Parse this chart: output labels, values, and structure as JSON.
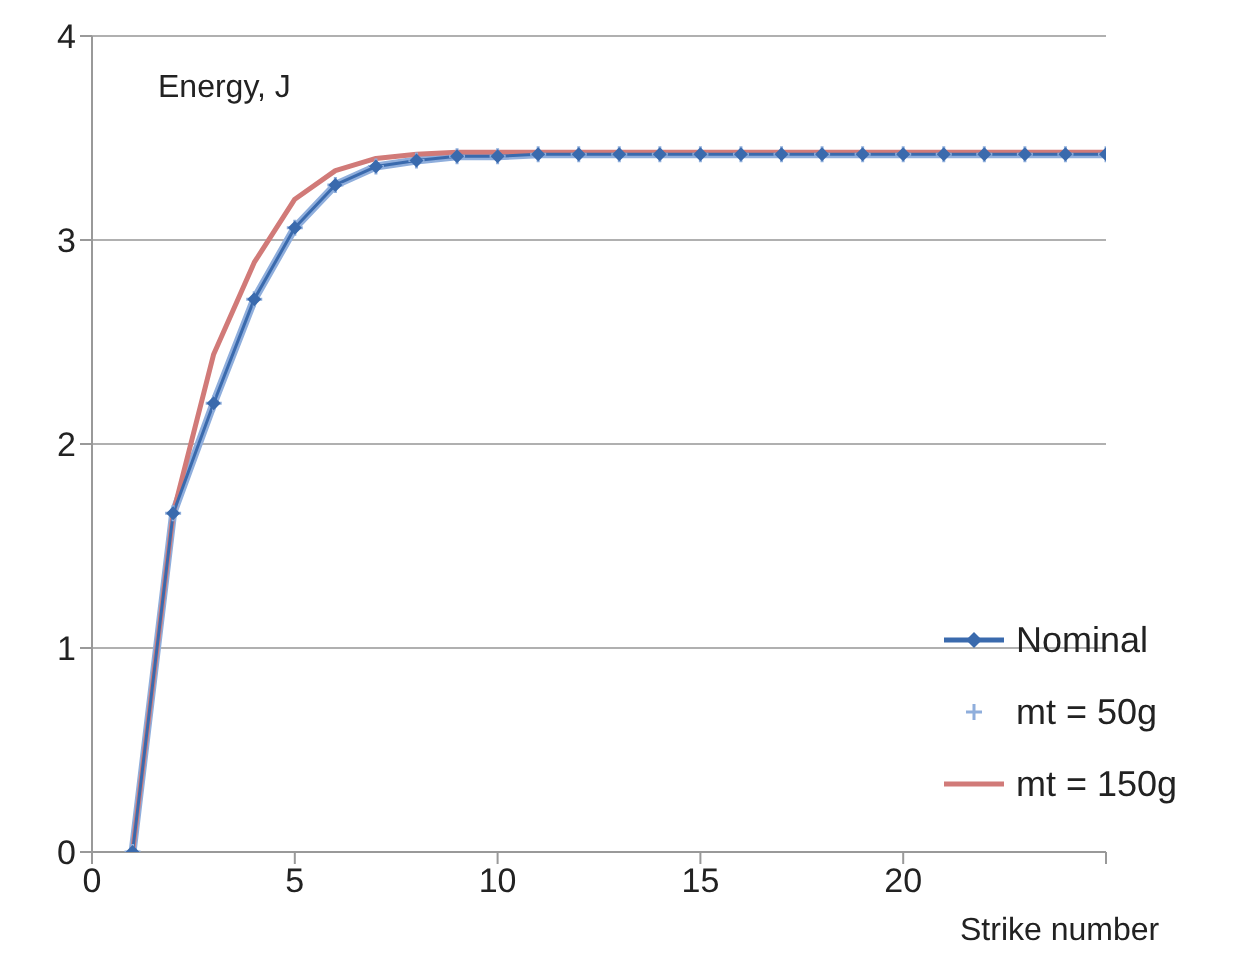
{
  "chart_data": {
    "type": "line",
    "ylabel": "Energy, J",
    "xlabel": "Strike number",
    "x": [
      1,
      2,
      3,
      4,
      5,
      6,
      7,
      8,
      9,
      10,
      11,
      12,
      13,
      14,
      15,
      16,
      17,
      18,
      19,
      20,
      21,
      22,
      23,
      24,
      25
    ],
    "series": [
      {
        "name": "Nominal",
        "color": "#3a6aad",
        "marker": "diamond",
        "values": [
          0,
          1.66,
          2.2,
          2.71,
          3.06,
          3.27,
          3.36,
          3.39,
          3.41,
          3.41,
          3.42,
          3.42,
          3.42,
          3.42,
          3.42,
          3.42,
          3.42,
          3.42,
          3.42,
          3.42,
          3.42,
          3.42,
          3.42,
          3.42,
          3.42
        ]
      },
      {
        "name": "mt = 50g",
        "color": "#8faedc",
        "marker": "cross",
        "values": [
          0,
          1.66,
          2.2,
          2.71,
          3.06,
          3.27,
          3.36,
          3.39,
          3.41,
          3.41,
          3.42,
          3.42,
          3.42,
          3.42,
          3.42,
          3.42,
          3.42,
          3.42,
          3.42,
          3.42,
          3.42,
          3.42,
          3.42,
          3.42,
          3.42
        ]
      },
      {
        "name": "mt = 150g",
        "color": "#d17a78",
        "marker": "none",
        "values": [
          0,
          1.66,
          2.44,
          2.89,
          3.2,
          3.34,
          3.4,
          3.42,
          3.43,
          3.43,
          3.43,
          3.43,
          3.43,
          3.43,
          3.43,
          3.43,
          3.43,
          3.43,
          3.43,
          3.43,
          3.43,
          3.43,
          3.43,
          3.43,
          3.43
        ]
      }
    ],
    "xlim": [
      0,
      25
    ],
    "xticks": [
      0,
      5,
      10,
      15,
      20,
      {
        "value": 25,
        "label": null
      }
    ],
    "ylim": [
      0,
      4
    ],
    "yticks": [
      0,
      1,
      2,
      3,
      4
    ],
    "grid": "y",
    "legend": "bottom right",
    "line_style": "solid"
  }
}
